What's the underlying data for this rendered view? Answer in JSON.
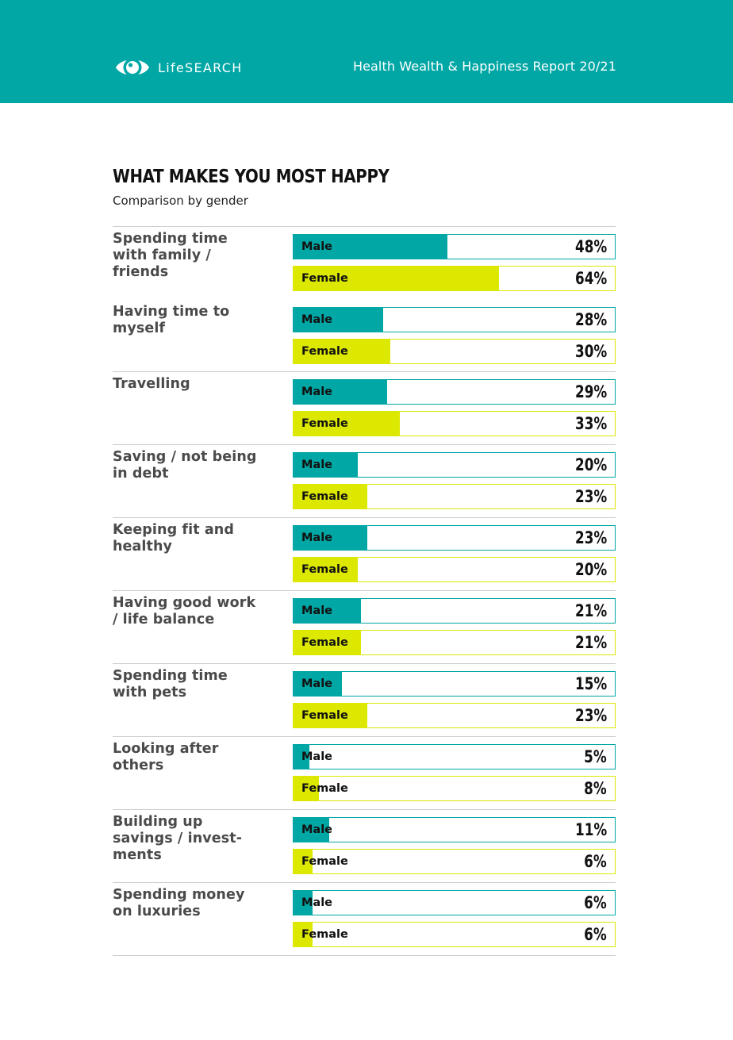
{
  "header": {
    "logo_text": "LifeSEARCH",
    "report_title": "Health Wealth & Happiness Report 20/21"
  },
  "colors": {
    "header_bg": "#00a7a5",
    "male": "#00a7a5",
    "female": "#dce800"
  },
  "chart_data": {
    "type": "bar",
    "title": "WHAT MAKES YOU MOST HAPPY",
    "subtitle": "Comparison by gender",
    "value_unit": "%",
    "xlim": [
      0,
      100
    ],
    "categories": [
      "Spending time with family / friends",
      "Having time to myself",
      "Travelling",
      "Saving / not being in debt",
      "Keeping fit and healthy",
      "Having good work / life balance",
      "Spending time with pets",
      "Looking after others",
      "Building up savings / invest-ments",
      "Spending money on luxuries"
    ],
    "category_lines": [
      [
        "Spending time",
        "with family /",
        "friends"
      ],
      [
        "Having time to",
        "myself"
      ],
      [
        "Travelling"
      ],
      [
        "Saving / not being",
        "in debt"
      ],
      [
        "Keeping fit and",
        "healthy"
      ],
      [
        "Having good work",
        "/ life balance"
      ],
      [
        "Spending time",
        "with pets"
      ],
      [
        "Looking after",
        "others"
      ],
      [
        "Building up",
        "savings / invest-",
        "ments"
      ],
      [
        "Spending money",
        "on luxuries"
      ]
    ],
    "series": [
      {
        "name": "Male",
        "values": [
          48,
          28,
          29,
          20,
          23,
          21,
          15,
          5,
          11,
          6
        ]
      },
      {
        "name": "Female",
        "values": [
          64,
          30,
          33,
          23,
          20,
          21,
          23,
          8,
          6,
          6
        ]
      }
    ]
  }
}
